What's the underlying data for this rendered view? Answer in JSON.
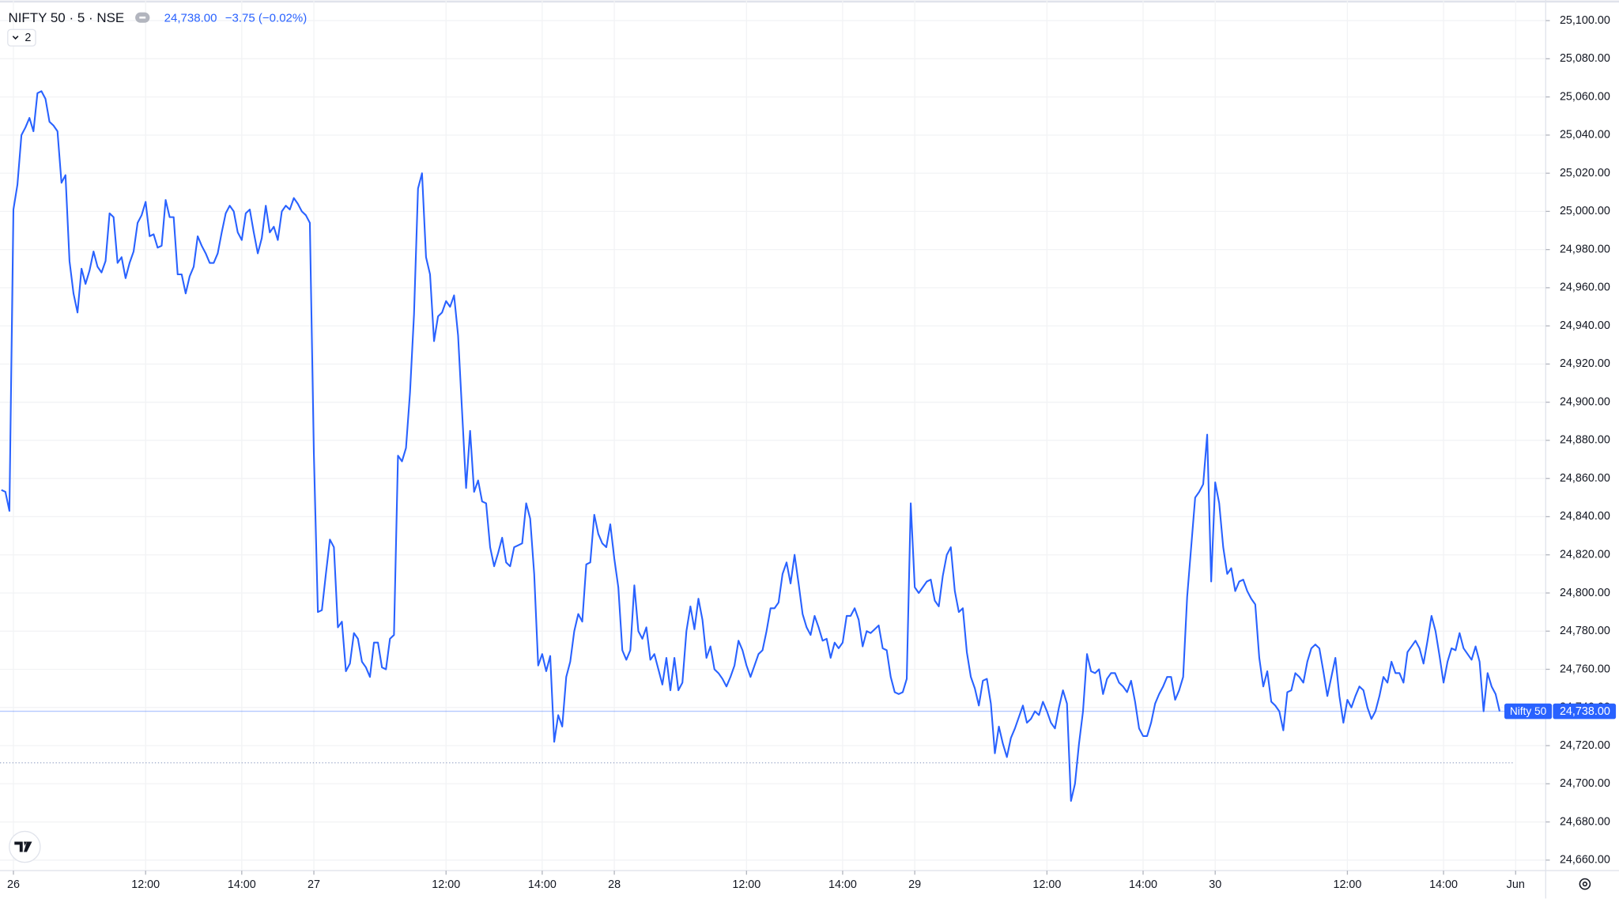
{
  "chart_data": {
    "type": "line",
    "header": {
      "symbol": "NIFTY 50 · 5 · NSE",
      "price": "24,738.00",
      "change": "−3.75 (−0.02%)",
      "indicator_count": "2"
    },
    "series": [
      {
        "name": "Nifty 50",
        "color": "#2962ff",
        "values": [
          24854,
          24853,
          24843,
          25001,
          25014,
          25040,
          25044,
          25049,
          25042,
          25062,
          25063,
          25059,
          25047,
          25045,
          25042,
          25015,
          25019,
          24974,
          24957,
          24947,
          24970,
          24962,
          24969,
          24979,
          24971,
          24968,
          24974,
          24999,
          24997,
          24973,
          24976,
          24965,
          24973,
          24979,
          24994,
          24998,
          25005,
          24987,
          24988,
          24981,
          24982,
          25006,
          24997,
          24997,
          24967,
          24967,
          24957,
          24966,
          24971,
          24987,
          24982,
          24978,
          24973,
          24973,
          24978,
          24989,
          24999,
          25003,
          25000,
          24989,
          24985,
          24999,
          25001,
          24989,
          24978,
          24986,
          25003,
          24989,
          24992,
          24985,
          25000,
          25003,
          25001,
          25007,
          25004,
          25000,
          24998,
          24994,
          24873,
          24790,
          24791,
          24810,
          24828,
          24824,
          24782,
          24785,
          24759,
          24763,
          24779,
          24776,
          24764,
          24761,
          24756,
          24774,
          24774,
          24761,
          24760,
          24776,
          24778,
          24872,
          24869,
          24876,
          24905,
          24946,
          25012,
          25020,
          24976,
          24967,
          24932,
          24945,
          24947,
          24953,
          24950,
          24956,
          24935,
          24895,
          24855,
          24885,
          24853,
          24859,
          24848,
          24847,
          24824,
          24814,
          24821,
          24829,
          24816,
          24814,
          24824,
          24825,
          24826,
          24847,
          24839,
          24810,
          24762,
          24768,
          24759,
          24767,
          24722,
          24736,
          24730,
          24756,
          24764,
          24780,
          24789,
          24785,
          24815,
          24816,
          24841,
          24831,
          24826,
          24824,
          24836,
          24818,
          24803,
          24770,
          24765,
          24770,
          24804,
          24780,
          24776,
          24782,
          24765,
          24768,
          24760,
          24752,
          24766,
          24749,
          24766,
          24749,
          24753,
          24780,
          24793,
          24781,
          24797,
          24786,
          24766,
          24772,
          24760,
          24758,
          24755,
          24751,
          24756,
          24762,
          24775,
          24770,
          24762,
          24756,
          24762,
          24768,
          24770,
          24780,
          24792,
          24792,
          24795,
          24810,
          24816,
          24805,
          24820,
          24805,
          24789,
          24782,
          24778,
          24788,
          24782,
          24775,
          24776,
          24766,
          24774,
          24771,
          24774,
          24788,
          24788,
          24792,
          24786,
          24772,
          24780,
          24779,
          24781,
          24783,
          24771,
          24770,
          24756,
          24748,
          24747,
          24748,
          24755,
          24847,
          24803,
          24800,
          24803,
          24806,
          24807,
          24796,
          24793,
          24809,
          24820,
          24824,
          24801,
          24790,
          24792,
          24769,
          24756,
          24750,
          24741,
          24754,
          24755,
          24742,
          24716,
          24730,
          24721,
          24714,
          24724,
          24729,
          24735,
          24741,
          24732,
          24734,
          24738,
          24736,
          24743,
          24738,
          24732,
          24729,
          24740,
          24749,
          24742,
          24691,
          24700,
          24721,
          24738,
          24768,
          24759,
          24758,
          24760,
          24747,
          24755,
          24758,
          24758,
          24753,
          24751,
          24748,
          24754,
          24743,
          24729,
          24725,
          24725,
          24732,
          24742,
          24747,
          24751,
          24756,
          24756,
          24744,
          24749,
          24756,
          24798,
          24824,
          24850,
          24853,
          24857,
          24883,
          24806,
          24858,
          24847,
          24824,
          24810,
          24813,
          24801,
          24806,
          24807,
          24801,
          24797,
          24794,
          24766,
          24751,
          24759,
          24743,
          24741,
          24738,
          24728,
          24748,
          24749,
          24758,
          24756,
          24753,
          24764,
          24771,
          24773,
          24771,
          24759,
          24746,
          24756,
          24766,
          24746,
          24732,
          24744,
          24740,
          24746,
          24751,
          24749,
          24740,
          24734,
          24738,
          24746,
          24756,
          24753,
          24764,
          24758,
          24758,
          24753,
          24769,
          24772,
          24775,
          24771,
          24763,
          24775,
          24788,
          24780,
          24767,
          24753,
          24764,
          24771,
          24770,
          24779,
          24771,
          24768,
          24765,
          24772,
          24764,
          24738,
          24758,
          24751,
          24747,
          24738
        ]
      }
    ],
    "x": [
      -3,
      -2,
      -1,
      0,
      1,
      2,
      3,
      4,
      5,
      6,
      7,
      8,
      9,
      10,
      11,
      12,
      13,
      14,
      15,
      16,
      17,
      18,
      19,
      20,
      21,
      22,
      23,
      24,
      25,
      26,
      27,
      28,
      29,
      30,
      31,
      32,
      33,
      34,
      35,
      36,
      37,
      38,
      39,
      40,
      41,
      42,
      43,
      44,
      45,
      46,
      47,
      48,
      49,
      50,
      51,
      52,
      53,
      54,
      55,
      56,
      57,
      58,
      59,
      60,
      61,
      62,
      63,
      64,
      65,
      66,
      67,
      68,
      69,
      70,
      71,
      72,
      73,
      74,
      75,
      76,
      77,
      78,
      79,
      80,
      81,
      82,
      83,
      84,
      85,
      86,
      87,
      88,
      89,
      90,
      91,
      92,
      93,
      94,
      95,
      96,
      97,
      98,
      99,
      100,
      101,
      102,
      103,
      104,
      105,
      106,
      107,
      108,
      109,
      110,
      111,
      112,
      113,
      114,
      115,
      116,
      117,
      118,
      119,
      120,
      121,
      122,
      123,
      124,
      125,
      126,
      127,
      128,
      129,
      130,
      131,
      132,
      133,
      134,
      135,
      136,
      137,
      138,
      139,
      140,
      141,
      142,
      143,
      144,
      145,
      146,
      147,
      148,
      149,
      150,
      151,
      152,
      153,
      154,
      155,
      156,
      157,
      158,
      159,
      160,
      161,
      162,
      163,
      164,
      165,
      166,
      167,
      168,
      169,
      170,
      171,
      172,
      173,
      174,
      175,
      176,
      177,
      178,
      179,
      180,
      181,
      182,
      183,
      184,
      185,
      186,
      187,
      188,
      189,
      190,
      191,
      192,
      193,
      194,
      195,
      196,
      197,
      198,
      199,
      200,
      201,
      202,
      203,
      204,
      205,
      206,
      207,
      208,
      209,
      210,
      211,
      212,
      213,
      214,
      215,
      216,
      217,
      218,
      219,
      220,
      221,
      222,
      223,
      224,
      225,
      226,
      227,
      228,
      229,
      230,
      231,
      232,
      233,
      234,
      235,
      236,
      237,
      238,
      239,
      240,
      241,
      242,
      243,
      244,
      245,
      246,
      247,
      248,
      249,
      250,
      251,
      252,
      253,
      254,
      255,
      256,
      257,
      258,
      259,
      260,
      261,
      262,
      263,
      264,
      265,
      266,
      267,
      268,
      269,
      270,
      271,
      272,
      273,
      274,
      275,
      276,
      277,
      278,
      279,
      280,
      281,
      282,
      283,
      284,
      285,
      286,
      287,
      288,
      289,
      290,
      291,
      292,
      293,
      294,
      295,
      296,
      297,
      298,
      299,
      300,
      301,
      302,
      303,
      304,
      305,
      306,
      307,
      308,
      309,
      310,
      311,
      312,
      313,
      314,
      315,
      316,
      317,
      318,
      319,
      320,
      321,
      322,
      323,
      324,
      325,
      326,
      327,
      328,
      329,
      330,
      331,
      332,
      333,
      334,
      335,
      336,
      337,
      338,
      339,
      340,
      341,
      342,
      343,
      344,
      345,
      346,
      347,
      348,
      349,
      350,
      351,
      352,
      353,
      354,
      355,
      356,
      357,
      358,
      359,
      360,
      361,
      362,
      363,
      364,
      365,
      366,
      367,
      368,
      369,
      370,
      371
    ],
    "xlim": [
      -3.35,
      382.5
    ],
    "xticks": [
      {
        "value": 0,
        "label": "26"
      },
      {
        "value": 33,
        "label": "12:00"
      },
      {
        "value": 57,
        "label": "14:00"
      },
      {
        "value": 75,
        "label": "27"
      },
      {
        "value": 108,
        "label": "12:00"
      },
      {
        "value": 132,
        "label": "14:00"
      },
      {
        "value": 150,
        "label": "28"
      },
      {
        "value": 183,
        "label": "12:00"
      },
      {
        "value": 207,
        "label": "14:00"
      },
      {
        "value": 225,
        "label": "29"
      },
      {
        "value": 258,
        "label": "12:00"
      },
      {
        "value": 282,
        "label": "14:00"
      },
      {
        "value": 300,
        "label": "30"
      },
      {
        "value": 333,
        "label": "12:00"
      },
      {
        "value": 357,
        "label": "14:00"
      },
      {
        "value": 375,
        "label": "Jun"
      }
    ],
    "ylim": [
      24654.5,
      25110.8
    ],
    "yticks": [
      {
        "value": 24660,
        "label": "24,660.00"
      },
      {
        "value": 24680,
        "label": "24,680.00"
      },
      {
        "value": 24700,
        "label": "24,700.00"
      },
      {
        "value": 24720,
        "label": "24,720.00"
      },
      {
        "value": 24740,
        "label": "24,740.00"
      },
      {
        "value": 24760,
        "label": "24,760.00"
      },
      {
        "value": 24780,
        "label": "24,780.00"
      },
      {
        "value": 24800,
        "label": "24,800.00"
      },
      {
        "value": 24820,
        "label": "24,820.00"
      },
      {
        "value": 24840,
        "label": "24,840.00"
      },
      {
        "value": 24860,
        "label": "24,860.00"
      },
      {
        "value": 24880,
        "label": "24,880.00"
      },
      {
        "value": 24900,
        "label": "24,900.00"
      },
      {
        "value": 24920,
        "label": "24,920.00"
      },
      {
        "value": 24940,
        "label": "24,940.00"
      },
      {
        "value": 24960,
        "label": "24,960.00"
      },
      {
        "value": 24980,
        "label": "24,980.00"
      },
      {
        "value": 25000,
        "label": "25,000.00"
      },
      {
        "value": 25020,
        "label": "25,020.00"
      },
      {
        "value": 25040,
        "label": "25,040.00"
      },
      {
        "value": 25060,
        "label": "25,060.00"
      },
      {
        "value": 25080,
        "label": "25,080.00"
      },
      {
        "value": 25100,
        "label": "25,100.00"
      }
    ],
    "previous_close": 24711,
    "grid": true
  }
}
